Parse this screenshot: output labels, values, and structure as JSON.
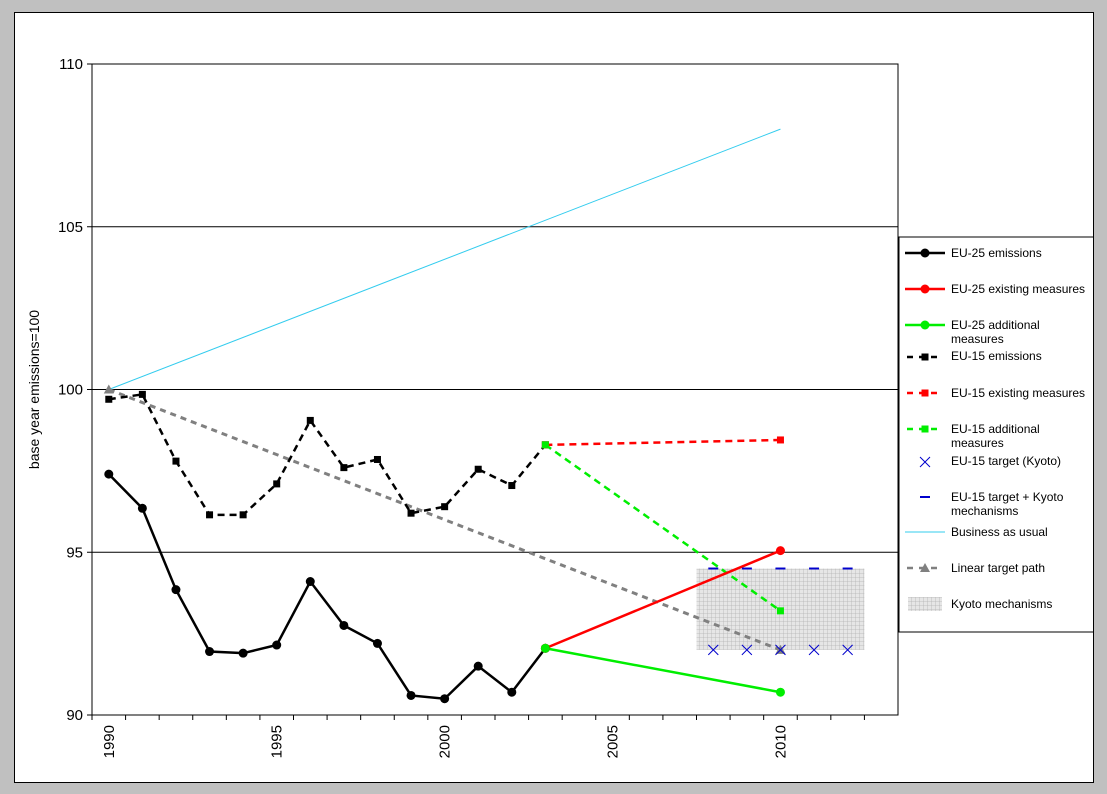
{
  "chart_data": {
    "type": "line",
    "title": "",
    "xlabel": "",
    "ylabel": "base year emissions=100",
    "xlim": [
      1989.5,
      2013.5
    ],
    "ylim": [
      90,
      110
    ],
    "y_ticks": [
      90,
      95,
      100,
      105,
      110
    ],
    "x_ticks": [
      1990,
      1995,
      2000,
      2005,
      2010
    ],
    "grid": "horizontal",
    "legend_position": "right",
    "series": [
      {
        "name": "EU-25 emissions",
        "style": "solid-circle",
        "color": "#000000",
        "x": [
          1990,
          1991,
          1992,
          1993,
          1994,
          1995,
          1996,
          1997,
          1998,
          1999,
          2000,
          2001,
          2002,
          2003
        ],
        "y": [
          97.4,
          96.35,
          93.85,
          91.95,
          91.9,
          92.15,
          94.1,
          92.75,
          92.2,
          90.6,
          90.5,
          91.5,
          90.7,
          92.05
        ]
      },
      {
        "name": "EU-25 existing measures",
        "style": "solid-circle",
        "color": "#ff0000",
        "x": [
          2003,
          2010
        ],
        "y": [
          92.05,
          95.05
        ]
      },
      {
        "name": "EU-25 additional measures",
        "style": "solid-circle",
        "color": "#00ee00",
        "x": [
          2003,
          2010
        ],
        "y": [
          92.05,
          90.7
        ]
      },
      {
        "name": "EU-15 emissions",
        "style": "dashed-square",
        "color": "#000000",
        "x": [
          1990,
          1991,
          1992,
          1993,
          1994,
          1995,
          1996,
          1997,
          1998,
          1999,
          2000,
          2001,
          2002,
          2003
        ],
        "y": [
          99.7,
          99.85,
          97.8,
          96.15,
          96.15,
          97.1,
          99.05,
          97.6,
          97.85,
          96.2,
          96.4,
          97.55,
          97.05,
          98.3
        ]
      },
      {
        "name": "EU-15 existing measures",
        "style": "dashed-square",
        "color": "#ff0000",
        "x": [
          2003,
          2010
        ],
        "y": [
          98.3,
          98.45
        ]
      },
      {
        "name": "EU-15 additional measures",
        "style": "dashed-square",
        "color": "#00ee00",
        "x": [
          2003,
          2010
        ],
        "y": [
          98.3,
          93.2
        ]
      },
      {
        "name": "EU-15 target (Kyoto)",
        "style": "x-marker",
        "color": "#0000cc",
        "x": [
          2008,
          2009,
          2010,
          2011,
          2012
        ],
        "y": [
          92,
          92,
          92,
          92,
          92
        ]
      },
      {
        "name": "EU-15 target + Kyoto mechanisms",
        "style": "dash-marker",
        "color": "#0000cc",
        "x": [
          2008,
          2009,
          2010,
          2011,
          2012
        ],
        "y": [
          94.5,
          94.5,
          94.5,
          94.5,
          94.5
        ]
      },
      {
        "name": "Business as usual",
        "style": "thin-line",
        "color": "#33ccee",
        "x": [
          1990,
          2010
        ],
        "y": [
          100,
          108
        ]
      },
      {
        "name": "Linear target path",
        "style": "dashed-triangle",
        "color": "#808080",
        "x": [
          1990,
          2010
        ],
        "y": [
          100,
          92
        ]
      },
      {
        "name": "Kyoto mechanisms",
        "style": "area",
        "color": "#d8d8d8",
        "x": [
          2007.5,
          2012.5
        ],
        "y_low": 92,
        "y_high": 94.5
      }
    ]
  }
}
